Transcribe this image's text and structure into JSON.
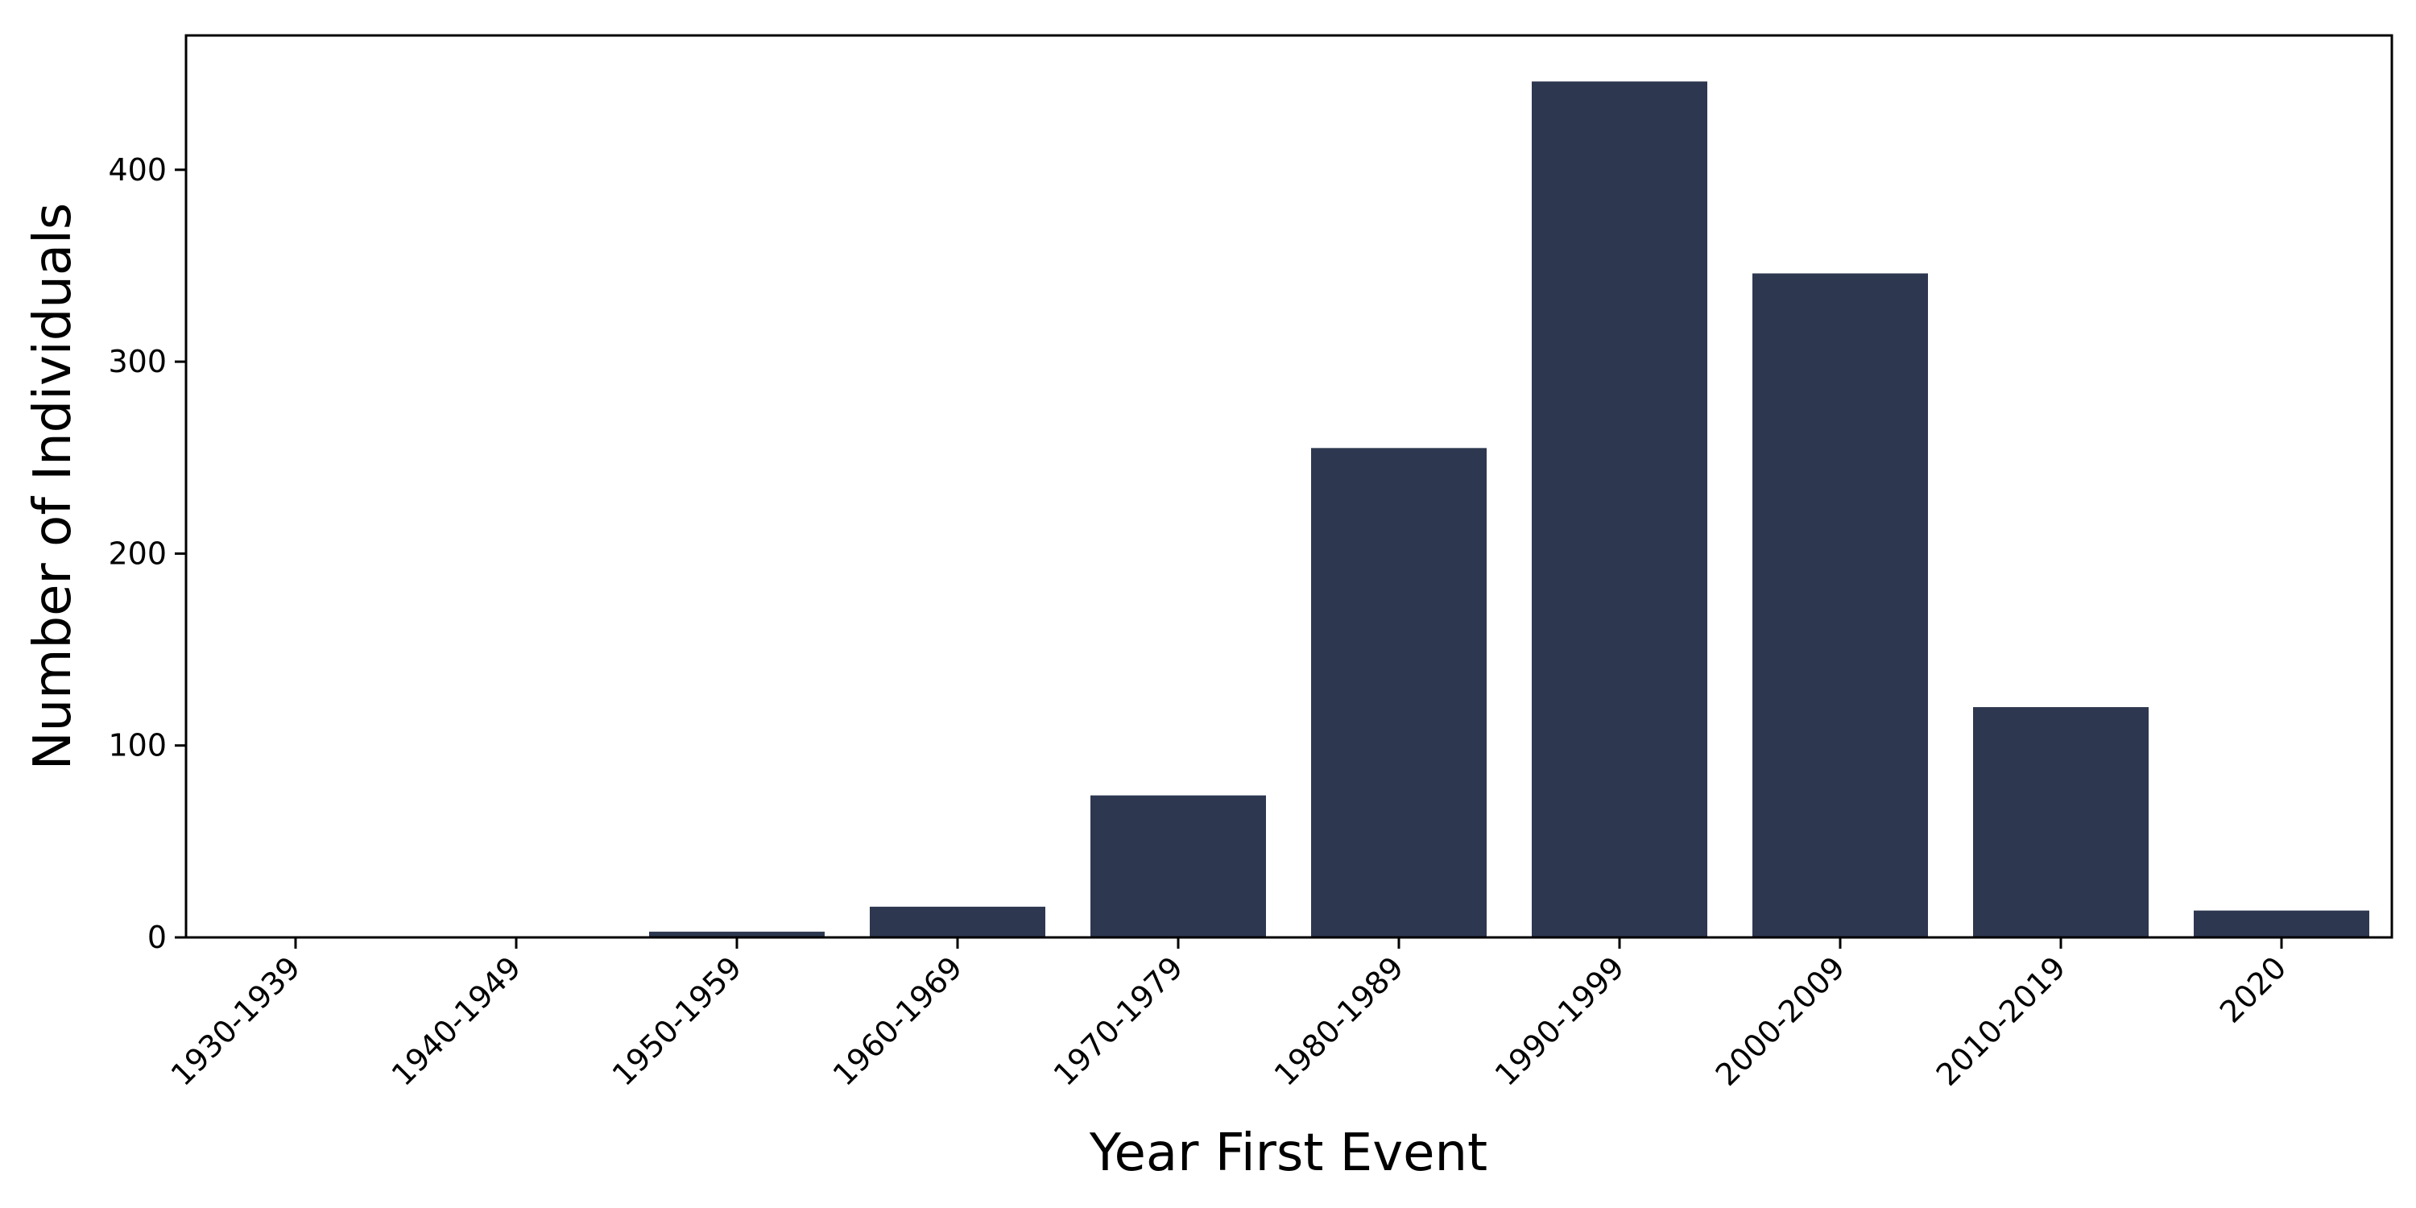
{
  "chart_data": {
    "type": "bar",
    "title": "",
    "xlabel": "Year First Event",
    "ylabel": "Number of Individuals",
    "categories": [
      "1930-1939",
      "1940-1949",
      "1950-1959",
      "1960-1969",
      "1970-1979",
      "1980-1989",
      "1990-1999",
      "2000-2009",
      "2010-2019",
      "2020"
    ],
    "values": [
      0,
      0,
      3,
      16,
      74,
      255,
      446,
      346,
      120,
      14
    ],
    "ylim": [
      0,
      470
    ],
    "yticks": [
      0,
      100,
      200,
      300,
      400
    ],
    "bar_color": "#2d3850",
    "grid": false,
    "legend": "none"
  }
}
